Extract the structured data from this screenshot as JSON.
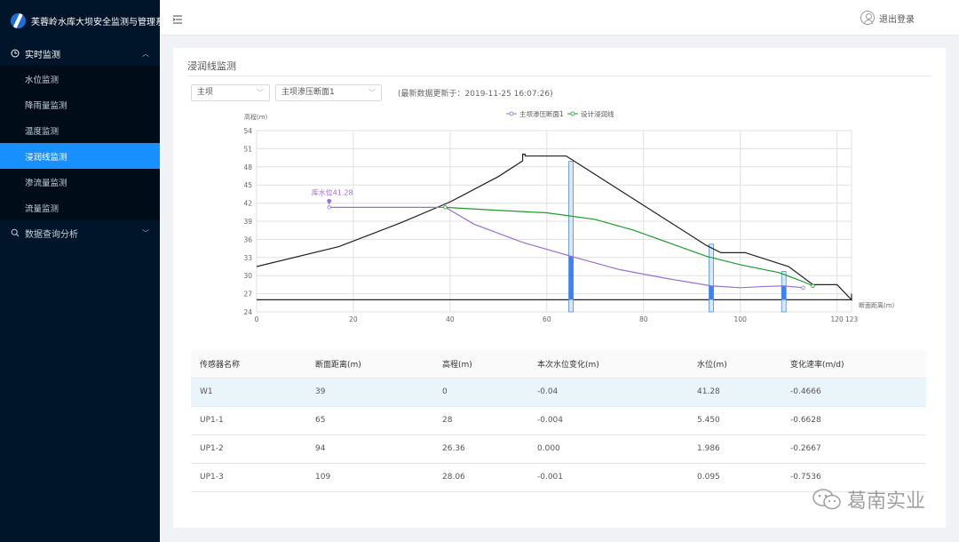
{
  "app": {
    "title": "芙蓉岭水库大坝安全监测与管理系统"
  },
  "sidebar": {
    "group1": {
      "label": "实时监测",
      "arrow": "︿"
    },
    "items": [
      {
        "label": "水位监测"
      },
      {
        "label": "降雨量监测"
      },
      {
        "label": "温度监测"
      },
      {
        "label": "浸润线监测"
      },
      {
        "label": "渗流量监测"
      },
      {
        "label": "流量监测"
      }
    ],
    "group2": {
      "label": "数据查询分析",
      "arrow": "﹀"
    }
  },
  "header": {
    "logout_label": "退出登录"
  },
  "panel": {
    "title": "浸润线监测",
    "select1": "主坝",
    "select2": "主坝渗压断面1",
    "updated": "(最新数据更新于：2019-11-25 16:07:26)"
  },
  "chart_data": {
    "type": "line",
    "ylabel": "高程(m)",
    "xlabel": "断面距离(m)",
    "x_ticks": [
      0,
      20,
      40,
      60,
      80,
      100,
      120,
      123
    ],
    "y_ticks": [
      24,
      27,
      30,
      33,
      36,
      39,
      42,
      45,
      48,
      51,
      54
    ],
    "xlim": [
      0,
      123
    ],
    "ylim": [
      24,
      54
    ],
    "legend": [
      "主坝渗压断面1",
      "设计浸润线"
    ],
    "annotation": "库水位41.28",
    "dam_profile": [
      [
        0,
        31.5
      ],
      [
        17,
        34.8
      ],
      [
        30,
        38.8
      ],
      [
        40,
        42.2
      ],
      [
        50,
        46.4
      ],
      [
        55,
        49.0
      ],
      [
        55,
        50.1
      ],
      [
        55.5,
        50.1
      ],
      [
        55.5,
        49.8
      ],
      [
        61,
        49.8
      ],
      [
        64,
        49.8
      ],
      [
        93,
        35
      ],
      [
        96,
        33.8
      ],
      [
        101,
        33.8
      ],
      [
        108,
        32
      ],
      [
        110,
        31.5
      ],
      [
        115,
        28.5
      ],
      [
        120,
        28.5
      ],
      [
        123,
        26
      ],
      [
        123,
        27
      ]
    ],
    "foundation": [
      [
        0,
        26
      ],
      [
        123,
        26
      ]
    ],
    "series": [
      {
        "name": "主坝渗压断面1",
        "color": "#9b6fd3",
        "points": [
          [
            15,
            41.3
          ],
          [
            39,
            41.3
          ],
          [
            45,
            38.5
          ],
          [
            55,
            35.5
          ],
          [
            65,
            33.2
          ],
          [
            75,
            31
          ],
          [
            85,
            29.5
          ],
          [
            94,
            28.3
          ],
          [
            100,
            28
          ],
          [
            105,
            28.2
          ],
          [
            109,
            28.3
          ],
          [
            113,
            28
          ]
        ]
      },
      {
        "name": "设计浸润线",
        "color": "#1a9e2a",
        "points": [
          [
            39,
            41.3
          ],
          [
            50,
            40.8
          ],
          [
            60,
            40.4
          ],
          [
            70,
            39.3
          ],
          [
            78,
            37.5
          ],
          [
            85,
            35.5
          ],
          [
            93,
            33.2
          ],
          [
            100,
            31.8
          ],
          [
            108,
            30.5
          ],
          [
            113,
            29
          ],
          [
            115,
            28.3
          ]
        ]
      }
    ],
    "piezometers": [
      {
        "x": 65,
        "top": 48.9,
        "fill": 33.2
      },
      {
        "x": 94,
        "top": 35.2,
        "fill": 28.3
      },
      {
        "x": 109,
        "top": 30.7,
        "fill": 28.3
      }
    ],
    "colors": {
      "dam": "#222222",
      "grid": "#e0e0e0",
      "pipe": "#4a90e2",
      "pipe_fill": "#3b82f6"
    }
  },
  "table": {
    "headers": [
      "传感器名称",
      "断面距离(m)",
      "高程(m)",
      "本次水位变化(m)",
      "水位(m)",
      "变化速率(m/d)"
    ],
    "rows": [
      [
        "W1",
        "39",
        "0",
        "-0.04",
        "41.28",
        "-0.4666"
      ],
      [
        "UP1-1",
        "65",
        "28",
        "-0.004",
        "5.450",
        "-0.6628"
      ],
      [
        "UP1-2",
        "94",
        "26.36",
        "0.000",
        "1.986",
        "-0.2667"
      ],
      [
        "UP1-3",
        "109",
        "28.06",
        "-0.001",
        "0.095",
        "-0.7536"
      ]
    ]
  },
  "watermark": {
    "text": "葛南实业"
  }
}
